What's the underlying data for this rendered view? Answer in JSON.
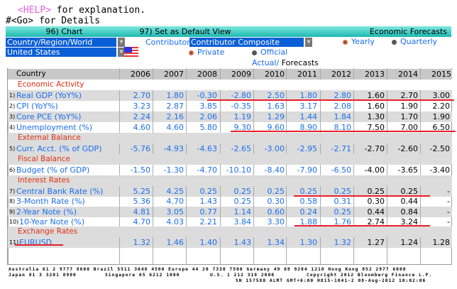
{
  "top": {
    "help_key": "<HELP>",
    "help_text": " for explanation.",
    "go_text": "#<Go> for Details"
  },
  "toolbar": {
    "chart": "96) Chart",
    "default_view": "97) Set as Default View",
    "title": "Economic Forecasts"
  },
  "controls": {
    "region_select": "Country/Region/World",
    "country_select": "United States",
    "contributor_label": "Contributor",
    "contributor_select": "Contributor Composite",
    "yearly": "Yearly",
    "quarterly": "Quarterly",
    "private": "Private",
    "official": "Official",
    "actual": "Actual",
    "slash": "/",
    "forecasts": "Forecasts"
  },
  "table": {
    "header": "Country",
    "years": [
      "2006",
      "2007",
      "2008",
      "2009",
      "2010",
      "2011",
      "2012",
      "2013",
      "2014",
      "2015"
    ],
    "rows": [
      {
        "section": "Economic Activity"
      },
      {
        "num": "1)",
        "label": "Real GDP (YoY%)",
        "values": [
          "2.70",
          "1.80",
          "-0.30",
          "-2.80",
          "2.50",
          "1.80",
          "2.80",
          "1.60",
          "2.70",
          "3.00"
        ]
      },
      {
        "num": "2)",
        "label": "CPI (YoY%)",
        "values": [
          "3.23",
          "2.87",
          "3.85",
          "-0.35",
          "1.63",
          "3.17",
          "2.08",
          "1.60",
          "1.90",
          "2.20"
        ]
      },
      {
        "num": "3)",
        "label": "Core PCE (YoY%)",
        "values": [
          "2.24",
          "2.16",
          "2.06",
          "1.19",
          "1.29",
          "1.44",
          "1.84",
          "1.30",
          "1.70",
          "1.90"
        ]
      },
      {
        "num": "4)",
        "label": "Unemployment (%)",
        "values": [
          "4.60",
          "4.60",
          "5.80",
          "9.30",
          "9.60",
          "8.90",
          "8.10",
          "7.50",
          "7.00",
          "6.50"
        ]
      },
      {
        "section": "External Balance"
      },
      {
        "num": "5)",
        "label": "Curr. Acct. (% of GDP)",
        "values": [
          "-5.76",
          "-4.93",
          "-4.63",
          "-2.65",
          "-3.00",
          "-2.95",
          "-2.71",
          "-2.70",
          "-2.60",
          "-2.50"
        ]
      },
      {
        "section": "Fiscal Balance"
      },
      {
        "num": "6)",
        "label": "Budget (% of GDP)",
        "values": [
          "-1.50",
          "-1.30",
          "-4.70",
          "-10.10",
          "-8.40",
          "-7.90",
          "-6.50",
          "-4.00",
          "-3.65",
          "-3.40"
        ]
      },
      {
        "section": "Interest Rates"
      },
      {
        "num": "7)",
        "label": "Central Bank Rate (%)",
        "values": [
          "5.25",
          "4.25",
          "0.25",
          "0.25",
          "0.25",
          "0.25",
          "0.25",
          "0.25",
          "0.25",
          "-"
        ]
      },
      {
        "num": "8)",
        "label": "3-Month Rate (%)",
        "values": [
          "5.36",
          "4.70",
          "1.43",
          "0.25",
          "0.30",
          "0.58",
          "0.31",
          "0.30",
          "0.44",
          "-"
        ]
      },
      {
        "num": "9)",
        "label": "2-Year Note (%)",
        "values": [
          "4.81",
          "3.05",
          "0.77",
          "1.14",
          "0.60",
          "0.24",
          "0.25",
          "0.44",
          "0.84",
          "-"
        ]
      },
      {
        "num": "10)",
        "label": "10-Year Note (%)",
        "values": [
          "4.70",
          "4.03",
          "2.21",
          "3.84",
          "3.30",
          "1.88",
          "1.76",
          "2.74",
          "3.24",
          "-"
        ]
      },
      {
        "section": "Exchange Rates"
      },
      {
        "num": "11)",
        "label": "EURUSD",
        "values": [
          "1.32",
          "1.46",
          "1.40",
          "1.43",
          "1.34",
          "1.30",
          "1.32",
          "1.27",
          "1.24",
          "1.28"
        ]
      }
    ]
  },
  "footer": {
    "line1": "Australia 61 2 9777 8600 Brazil 5511 3048 4500 Europe 44 20 7330 7500 Germany 49 69 9204 1210 Hong Kong 852 2977 6000",
    "line2a": "Japan 81 3 3201 8900",
    "line2b": "Singapore 65 6212 1000",
    "line2c": "U.S. 1 212 318 2000",
    "line2d": "Copyright 2012 Bloomberg Finance L.P.",
    "line3": "SN 157580 ALMT GMT+6:00 H815-1041-2 08-Aug-2012 10:02:06"
  }
}
